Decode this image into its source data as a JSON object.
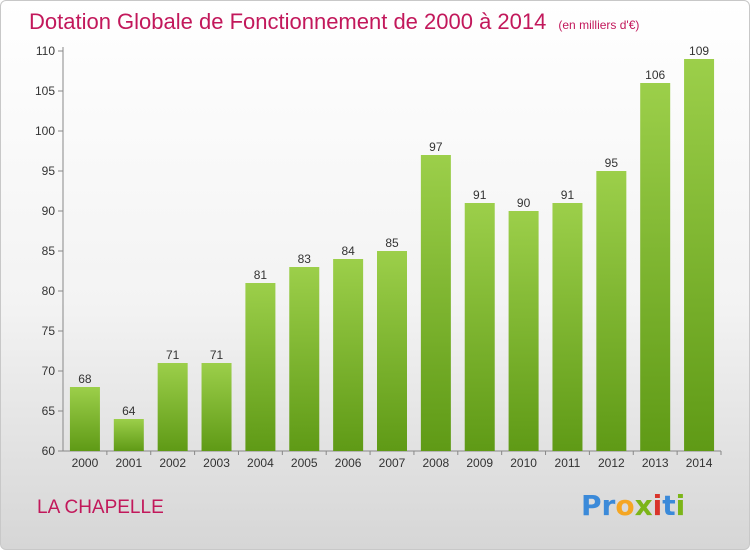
{
  "title": "Dotation Globale de Fonctionnement de 2000 à 2014",
  "subtitle": "(en milliers d'€)",
  "commune": "LA CHAPELLE",
  "logo": {
    "letters": [
      "P",
      "r",
      "o",
      "x",
      "i",
      "t",
      "i"
    ],
    "colors": [
      "#3b8ad9",
      "#3b8ad9",
      "#f5a623",
      "#7cb518",
      "#d9342b",
      "#3b8ad9",
      "#7cb518"
    ]
  },
  "colors": {
    "bar_top": "#9ccf4a",
    "bar_bottom": "#5f9a16",
    "title": "#c2185b"
  },
  "chart_data": {
    "type": "bar",
    "title": "Dotation Globale de Fonctionnement de 2000 à 2014",
    "subtitle": "(en milliers d'€)",
    "xlabel": "",
    "ylabel": "",
    "categories": [
      "2000",
      "2001",
      "2002",
      "2003",
      "2004",
      "2005",
      "2006",
      "2007",
      "2008",
      "2009",
      "2010",
      "2011",
      "2012",
      "2013",
      "2014"
    ],
    "values": [
      68,
      64,
      71,
      71,
      81,
      83,
      84,
      85,
      97,
      91,
      90,
      91,
      95,
      106,
      109
    ],
    "ylim": [
      60,
      110
    ],
    "yticks": [
      60,
      65,
      70,
      75,
      80,
      85,
      90,
      95,
      100,
      105,
      110
    ],
    "grid": false,
    "data_labels": true
  }
}
